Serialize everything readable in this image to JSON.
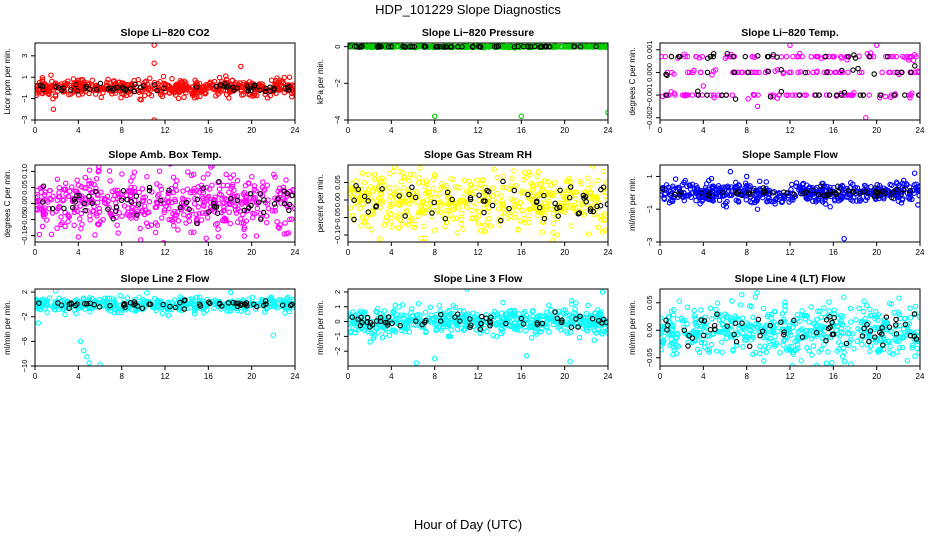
{
  "page_title": "HDP_101229  Slope Diagnostics",
  "footer_label": "Hour of Day (UTC)",
  "chart_data": [
    {
      "type": "scatter",
      "title": "Slope Li−820 CO2",
      "ylabel": "Licor ppm per min.",
      "xlim": [
        0,
        24
      ],
      "xticks": [
        0,
        4,
        8,
        12,
        16,
        20,
        24
      ],
      "ylim": [
        -3,
        4.2
      ],
      "yticks": [
        -3,
        -1,
        1,
        3
      ],
      "color": "#ff0000",
      "noise": [
        0,
        0.4
      ],
      "outliers": [
        [
          11,
          4.0
        ],
        [
          11,
          2.3
        ],
        [
          1.7,
          -2.0
        ],
        [
          11,
          -3.0
        ],
        [
          19,
          2.0
        ],
        [
          23.5,
          1.0
        ]
      ],
      "series": [
        {
          "count": 520,
          "color": "#ff0000"
        },
        {
          "count": 60,
          "color": "#000000"
        }
      ]
    },
    {
      "type": "scatter",
      "title": "Slope Li−820 Pressure",
      "ylabel": "kPa per min.",
      "xlim": [
        0,
        24
      ],
      "xticks": [
        0,
        4,
        8,
        12,
        16,
        20,
        24
      ],
      "ylim": [
        -4,
        0.2
      ],
      "yticks": [
        -4,
        -2,
        0
      ],
      "color": "#00cc00",
      "noise": [
        0,
        0.02
      ],
      "outliers": [
        [
          8,
          -3.8
        ],
        [
          16,
          -3.8
        ],
        [
          24,
          -3.6
        ],
        [
          0.3,
          0
        ]
      ],
      "series": [
        {
          "count": 420,
          "color": "#00cc00"
        },
        {
          "count": 60,
          "color": "#000000"
        }
      ]
    },
    {
      "type": "scatter",
      "title": "Slope Li−820 Temp.",
      "ylabel": "degrees C per min.",
      "xlim": [
        0,
        24
      ],
      "xticks": [
        0,
        4,
        8,
        12,
        16,
        20,
        24
      ],
      "ylim": [
        -0.0021,
        0.0013
      ],
      "yticks": [
        -0.002,
        -0.001,
        0,
        0.001
      ],
      "yticklabels": [
        "−0.002",
        "−0.001",
        "0.000",
        "0.001"
      ],
      "color": "#ff00ff",
      "levels": [
        -0.001,
        0,
        0.0007
      ],
      "outliers": [
        [
          12,
          0.0012
        ],
        [
          20,
          0.0012
        ],
        [
          19,
          -0.002
        ],
        [
          9,
          -0.0015
        ],
        [
          4,
          -0.0006
        ]
      ],
      "series": [
        {
          "count": 200,
          "color": "#ff00ff"
        },
        {
          "count": 60,
          "color": "#000000"
        }
      ]
    },
    {
      "type": "scatter",
      "title": "Slope Amb. Box Temp.",
      "ylabel": "degrees C per min.",
      "xlim": [
        0,
        24
      ],
      "xticks": [
        0,
        4,
        8,
        12,
        16,
        20,
        24
      ],
      "ylim": [
        -0.12,
        0.12
      ],
      "yticks": [
        -0.1,
        -0.05,
        0,
        0.05,
        0.1
      ],
      "yticklabels": [
        "−0.10",
        "−0.05",
        "0.00",
        "0.05",
        "0.10"
      ],
      "color": "#ff00ff",
      "noise": [
        0,
        0.045
      ],
      "outliers": [],
      "series": [
        {
          "count": 520,
          "color": "#ff00ff"
        },
        {
          "count": 60,
          "color": "#000000"
        }
      ]
    },
    {
      "type": "scatter",
      "title": "Slope Gas Stream RH",
      "ylabel": "percent per min.",
      "xlim": [
        0,
        24
      ],
      "xticks": [
        0,
        4,
        8,
        12,
        16,
        20,
        24
      ],
      "ylim": [
        -0.12,
        0.1
      ],
      "yticks": [
        -0.1,
        -0.05,
        0,
        0.05
      ],
      "yticklabels": [
        "−0.10",
        "−0.05",
        "0.00",
        "0.05"
      ],
      "color": "#ffff00",
      "noise": [
        0,
        0.045
      ],
      "outliers": [],
      "series": [
        {
          "count": 520,
          "color": "#ffff00"
        },
        {
          "count": 60,
          "color": "#000000"
        }
      ]
    },
    {
      "type": "scatter",
      "title": "Slope Sample Flow",
      "ylabel": "ml/min per min.",
      "xlim": [
        0,
        24
      ],
      "xticks": [
        0,
        4,
        8,
        12,
        16,
        20,
        24
      ],
      "ylim": [
        -3,
        1.7
      ],
      "yticks": [
        -3,
        -1,
        1
      ],
      "color": "#0000ff",
      "noise": [
        0,
        0.3
      ],
      "outliers": [
        [
          17,
          -2.8
        ],
        [
          6.5,
          1.3
        ],
        [
          8,
          1.0
        ],
        [
          23.5,
          1.2
        ],
        [
          9,
          -1.0
        ]
      ],
      "series": [
        {
          "count": 520,
          "color": "#0000ff"
        },
        {
          "count": 60,
          "color": "#000000"
        }
      ]
    },
    {
      "type": "scatter",
      "title": "Slope Line 2 Flow",
      "ylabel": "ml/min per min.",
      "xlim": [
        0,
        24
      ],
      "xticks": [
        0,
        4,
        8,
        12,
        16,
        20,
        24
      ],
      "ylim": [
        -10,
        2.5
      ],
      "yticks": [
        -10,
        -6,
        -2,
        2
      ],
      "color": "#00ffff",
      "noise": [
        0,
        0.6
      ],
      "outliers": [
        [
          4.2,
          -6
        ],
        [
          4.5,
          -7.5
        ],
        [
          4.8,
          -8.5
        ],
        [
          5,
          -9.5
        ],
        [
          6,
          -9.8
        ],
        [
          0.3,
          -3
        ],
        [
          22,
          -5
        ]
      ],
      "series": [
        {
          "count": 420,
          "color": "#00ffff"
        },
        {
          "count": 60,
          "color": "#000000"
        }
      ]
    },
    {
      "type": "scatter",
      "title": "Slope Line 3 Flow",
      "ylabel": "ml/min per min.",
      "xlim": [
        0,
        24
      ],
      "xticks": [
        0,
        4,
        8,
        12,
        16,
        20,
        24
      ],
      "ylim": [
        -3,
        2.2
      ],
      "yticks": [
        -2,
        -1,
        0,
        1,
        2
      ],
      "color": "#00ffff",
      "noise": [
        0,
        0.45
      ],
      "outliers": [
        [
          6.3,
          -2.8
        ],
        [
          8,
          -2.5
        ],
        [
          11,
          2.2
        ],
        [
          20.5,
          -2.7
        ],
        [
          23.5,
          2.0
        ],
        [
          16.5,
          -2.3
        ]
      ],
      "series": [
        {
          "count": 520,
          "color": "#00ffff"
        },
        {
          "count": 60,
          "color": "#000000"
        }
      ]
    },
    {
      "type": "scatter",
      "title": "Slope Line 4 (LT) Flow",
      "ylabel": "ml/min per min.",
      "xlim": [
        0,
        24
      ],
      "xticks": [
        0,
        4,
        8,
        12,
        16,
        20,
        24
      ],
      "ylim": [
        -0.065,
        0.075
      ],
      "yticks": [
        -0.05,
        0,
        0.05
      ],
      "yticklabels": [
        "−0.05",
        "0.00",
        "0.05"
      ],
      "color": "#00ffff",
      "noise": [
        0,
        0.025
      ],
      "outliers": [],
      "series": [
        {
          "count": 520,
          "color": "#00ffff"
        },
        {
          "count": 60,
          "color": "#000000"
        }
      ]
    }
  ]
}
